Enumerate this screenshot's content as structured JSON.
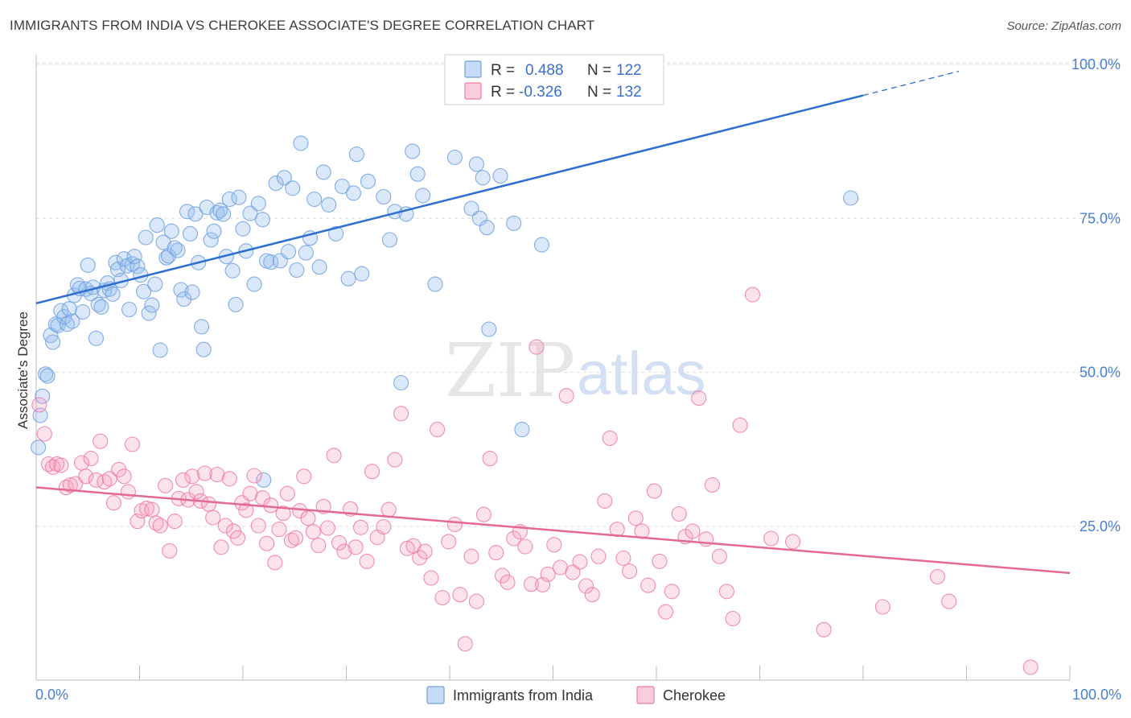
{
  "header": {
    "title": "IMMIGRANTS FROM INDIA VS CHEROKEE ASSOCIATE'S DEGREE CORRELATION CHART",
    "source": "Source: ZipAtlas.com"
  },
  "watermark": {
    "part1": "ZIP",
    "part2": "atlas"
  },
  "legend": {
    "r_label": "R =",
    "n_label": "N =",
    "rows": [
      {
        "r": "0.488",
        "n": "122",
        "color": "#6fa0e0"
      },
      {
        "r": "-0.326",
        "n": "132",
        "color": "#f07aa0"
      }
    ]
  },
  "chart_data": {
    "type": "scatter",
    "title": "IMMIGRANTS FROM INDIA VS CHEROKEE ASSOCIATE'S DEGREE CORRELATION CHART",
    "xlabel": "",
    "ylabel": "Associate's Degree",
    "xlim": [
      0,
      100
    ],
    "ylim": [
      0,
      100
    ],
    "x_tick_labels": [
      "0.0%",
      "100.0%"
    ],
    "y_tick_labels": [
      "100.0%",
      "75.0%",
      "50.0%",
      "25.0%"
    ],
    "y_ticks": [
      100,
      75,
      50,
      25
    ],
    "grid": true,
    "legend_position": "top-center",
    "series": [
      {
        "name": "Immigrants from India",
        "color": "#6fa0e0",
        "trend": {
          "x0": 0,
          "y0": 61.2,
          "x1": 100,
          "y1": 103.4,
          "solid_until": 80
        },
        "points": [
          [
            0.2,
            37.8
          ],
          [
            0.4,
            43
          ],
          [
            0.6,
            46.1
          ],
          [
            0.9,
            49.7
          ],
          [
            1.1,
            49.4
          ],
          [
            1.4,
            56
          ],
          [
            1.6,
            54.9
          ],
          [
            1.9,
            57.8
          ],
          [
            2.1,
            57.6
          ],
          [
            2.4,
            60
          ],
          [
            2.7,
            59
          ],
          [
            3.0,
            57.8
          ],
          [
            3.2,
            60.3
          ],
          [
            3.5,
            58.3
          ],
          [
            3.7,
            62.5
          ],
          [
            4.0,
            64.2
          ],
          [
            4.2,
            63.6
          ],
          [
            4.5,
            59.8
          ],
          [
            4.8,
            63.5
          ],
          [
            5.0,
            67.4
          ],
          [
            5.3,
            62.8
          ],
          [
            5.5,
            63.8
          ],
          [
            5.8,
            55.5
          ],
          [
            6.0,
            61
          ],
          [
            6.3,
            60.6
          ],
          [
            6.6,
            63.3
          ],
          [
            6.9,
            64.5
          ],
          [
            7.1,
            63.5
          ],
          [
            7.4,
            62.7
          ],
          [
            7.7,
            67.8
          ],
          [
            7.9,
            66.7
          ],
          [
            8.2,
            64.9
          ],
          [
            8.5,
            68.4
          ],
          [
            8.8,
            67.3
          ],
          [
            9.0,
            60.2
          ],
          [
            9.3,
            67.6
          ],
          [
            9.5,
            68.8
          ],
          [
            9.8,
            67.2
          ],
          [
            10.1,
            65.8
          ],
          [
            10.4,
            63.1
          ],
          [
            10.6,
            71.9
          ],
          [
            10.9,
            59.6
          ],
          [
            11.2,
            60.9
          ],
          [
            11.5,
            64.3
          ],
          [
            11.7,
            73.9
          ],
          [
            12.0,
            53.6
          ],
          [
            12.3,
            71.1
          ],
          [
            12.6,
            68.6
          ],
          [
            12.8,
            68.9
          ],
          [
            13.1,
            72.9
          ],
          [
            13.4,
            70.2
          ],
          [
            13.7,
            69.8
          ],
          [
            14.0,
            63.4
          ],
          [
            14.3,
            61.9
          ],
          [
            14.6,
            76.1
          ],
          [
            14.9,
            72.5
          ],
          [
            15.1,
            63
          ],
          [
            15.4,
            75.7
          ],
          [
            15.7,
            67.8
          ],
          [
            16.0,
            57.4
          ],
          [
            16.2,
            53.7
          ],
          [
            16.5,
            76.8
          ],
          [
            16.9,
            71.5
          ],
          [
            17.2,
            72.9
          ],
          [
            17.5,
            75.9
          ],
          [
            17.8,
            76.3
          ],
          [
            18.1,
            75.7
          ],
          [
            18.4,
            68.8
          ],
          [
            18.7,
            78.1
          ],
          [
            19.0,
            66.5
          ],
          [
            19.3,
            61
          ],
          [
            19.6,
            78.4
          ],
          [
            20.0,
            73.3
          ],
          [
            20.3,
            69.7
          ],
          [
            20.7,
            75.8
          ],
          [
            21.1,
            64.3
          ],
          [
            21.5,
            77.4
          ],
          [
            21.9,
            74.8
          ],
          [
            22.3,
            68.1
          ],
          [
            22.7,
            67.9
          ],
          [
            23.2,
            80.7
          ],
          [
            23.6,
            68.1
          ],
          [
            24.0,
            81.6
          ],
          [
            24.4,
            69.6
          ],
          [
            24.8,
            79.9
          ],
          [
            25.2,
            66.6
          ],
          [
            25.6,
            87.2
          ],
          [
            26.1,
            69.4
          ],
          [
            26.5,
            71.8
          ],
          [
            26.9,
            78.1
          ],
          [
            27.4,
            67.1
          ],
          [
            27.8,
            82.5
          ],
          [
            28.3,
            77.2
          ],
          [
            29.0,
            72.5
          ],
          [
            29.6,
            80.2
          ],
          [
            30.2,
            65.2
          ],
          [
            30.7,
            79.1
          ],
          [
            31.0,
            85.4
          ],
          [
            31.5,
            66
          ],
          [
            32.1,
            81
          ],
          [
            33.6,
            78.5
          ],
          [
            34.2,
            71.5
          ],
          [
            34.7,
            76.1
          ],
          [
            35.3,
            48.3
          ],
          [
            35.8,
            75.7
          ],
          [
            36.4,
            85.9
          ],
          [
            36.9,
            82.2
          ],
          [
            37.4,
            78.7
          ],
          [
            38.6,
            64.3
          ],
          [
            40.5,
            84.9
          ],
          [
            42.1,
            76.6
          ],
          [
            42.6,
            83.8
          ],
          [
            43.2,
            81.6
          ],
          [
            42.9,
            75
          ],
          [
            43.8,
            57
          ],
          [
            44.9,
            81.9
          ],
          [
            46.2,
            74.2
          ],
          [
            47.0,
            40.7
          ],
          [
            48.9,
            70.7
          ],
          [
            78.8,
            78.3
          ],
          [
            43.6,
            73.5
          ],
          [
            22.0,
            32.5
          ]
        ]
      },
      {
        "name": "Cherokee",
        "color": "#f07aa0",
        "trend": {
          "x0": 0,
          "y0": 31.3,
          "x1": 100,
          "y1": 17.4
        },
        "points": [
          [
            0.3,
            44.7
          ],
          [
            0.8,
            40
          ],
          [
            1.2,
            35.1
          ],
          [
            1.6,
            34.6
          ],
          [
            2.0,
            35.1
          ],
          [
            2.4,
            34.9
          ],
          [
            2.9,
            31.3
          ],
          [
            3.3,
            31.7
          ],
          [
            3.8,
            31.9
          ],
          [
            4.4,
            35.3
          ],
          [
            4.8,
            33.1
          ],
          [
            5.3,
            36
          ],
          [
            5.8,
            32.5
          ],
          [
            6.2,
            38.8
          ],
          [
            6.6,
            32.2
          ],
          [
            7.1,
            32.7
          ],
          [
            7.5,
            28.8
          ],
          [
            8.0,
            34.2
          ],
          [
            8.5,
            33.1
          ],
          [
            8.9,
            30.6
          ],
          [
            9.3,
            38.3
          ],
          [
            9.8,
            25.8
          ],
          [
            10.2,
            27.5
          ],
          [
            10.7,
            27.9
          ],
          [
            11.2,
            27.7
          ],
          [
            11.6,
            25.5
          ],
          [
            12.0,
            25.1
          ],
          [
            12.5,
            31.6
          ],
          [
            12.9,
            21
          ],
          [
            13.4,
            25.8
          ],
          [
            13.8,
            29.5
          ],
          [
            14.2,
            32.5
          ],
          [
            14.7,
            29.3
          ],
          [
            15.1,
            33.1
          ],
          [
            15.5,
            30.6
          ],
          [
            15.9,
            29.1
          ],
          [
            16.3,
            33.6
          ],
          [
            16.7,
            28.6
          ],
          [
            17.1,
            26.4
          ],
          [
            17.5,
            33.4
          ],
          [
            17.9,
            21.6
          ],
          [
            18.3,
            25.1
          ],
          [
            18.7,
            32.7
          ],
          [
            19.1,
            24.2
          ],
          [
            19.5,
            23.1
          ],
          [
            19.9,
            28.8
          ],
          [
            20.3,
            27.6
          ],
          [
            20.7,
            30.3
          ],
          [
            21.1,
            33.2
          ],
          [
            21.5,
            25.1
          ],
          [
            21.9,
            29.6
          ],
          [
            22.3,
            22.2
          ],
          [
            22.7,
            28.4
          ],
          [
            23.1,
            19.1
          ],
          [
            23.5,
            24.5
          ],
          [
            23.9,
            27.1
          ],
          [
            24.3,
            30.3
          ],
          [
            24.7,
            22.7
          ],
          [
            25.1,
            23.1
          ],
          [
            25.5,
            27.5
          ],
          [
            25.9,
            33.1
          ],
          [
            26.3,
            26.3
          ],
          [
            26.8,
            24.1
          ],
          [
            27.3,
            21.9
          ],
          [
            27.8,
            28.2
          ],
          [
            28.2,
            24.7
          ],
          [
            28.8,
            36.5
          ],
          [
            29.3,
            22.3
          ],
          [
            29.8,
            20.9
          ],
          [
            30.4,
            27.8
          ],
          [
            30.9,
            21.6
          ],
          [
            31.4,
            24.8
          ],
          [
            32.0,
            19.3
          ],
          [
            32.5,
            33.9
          ],
          [
            33.0,
            23.2
          ],
          [
            33.6,
            24.9
          ],
          [
            34.1,
            27.7
          ],
          [
            34.7,
            35.8
          ],
          [
            35.3,
            43.3
          ],
          [
            35.9,
            21.4
          ],
          [
            36.5,
            21.8
          ],
          [
            37.1,
            19.9
          ],
          [
            37.6,
            20.9
          ],
          [
            38.2,
            16.6
          ],
          [
            38.8,
            40.7
          ],
          [
            39.3,
            13.4
          ],
          [
            39.9,
            22.5
          ],
          [
            40.5,
            25.3
          ],
          [
            41.0,
            13.9
          ],
          [
            41.5,
            5.9
          ],
          [
            42.1,
            20.1
          ],
          [
            42.6,
            12.8
          ],
          [
            43.3,
            26.9
          ],
          [
            43.9,
            36
          ],
          [
            44.5,
            20.7
          ],
          [
            45.1,
            17
          ],
          [
            45.6,
            15.9
          ],
          [
            46.2,
            23
          ],
          [
            46.8,
            24.1
          ],
          [
            47.3,
            21.7
          ],
          [
            47.9,
            15.6
          ],
          [
            48.4,
            54.1
          ],
          [
            49.0,
            15.5
          ],
          [
            49.5,
            17.2
          ],
          [
            50.1,
            22
          ],
          [
            50.7,
            18.3
          ],
          [
            51.3,
            46.2
          ],
          [
            51.9,
            17.5
          ],
          [
            52.6,
            19.2
          ],
          [
            53.2,
            15.3
          ],
          [
            53.8,
            13.9
          ],
          [
            54.4,
            20.1
          ],
          [
            55.0,
            29.1
          ],
          [
            55.5,
            39.3
          ],
          [
            56.2,
            24.5
          ],
          [
            56.8,
            19.8
          ],
          [
            57.4,
            17.7
          ],
          [
            58.0,
            26.3
          ],
          [
            58.6,
            24.2
          ],
          [
            59.2,
            15.4
          ],
          [
            59.8,
            30.7
          ],
          [
            60.3,
            19.3
          ],
          [
            60.9,
            11.1
          ],
          [
            61.5,
            14.4
          ],
          [
            62.2,
            27
          ],
          [
            62.8,
            23.3
          ],
          [
            63.5,
            24.2
          ],
          [
            64.1,
            45.8
          ],
          [
            64.8,
            22.9
          ],
          [
            65.4,
            31.7
          ],
          [
            66.1,
            20.1
          ],
          [
            66.8,
            14.4
          ],
          [
            67.4,
            10
          ],
          [
            68.1,
            41.4
          ],
          [
            69.3,
            62.6
          ],
          [
            71.1,
            23
          ],
          [
            73.2,
            22.5
          ],
          [
            76.2,
            8.2
          ],
          [
            81.9,
            11.9
          ],
          [
            87.2,
            16.8
          ],
          [
            88.3,
            12.8
          ],
          [
            96.2,
            2.1
          ]
        ]
      }
    ]
  },
  "bottom_legend": {
    "items": [
      {
        "label": "Immigrants from India",
        "color": "#6fa0e0"
      },
      {
        "label": "Cherokee",
        "color": "#f07aa0"
      }
    ]
  }
}
